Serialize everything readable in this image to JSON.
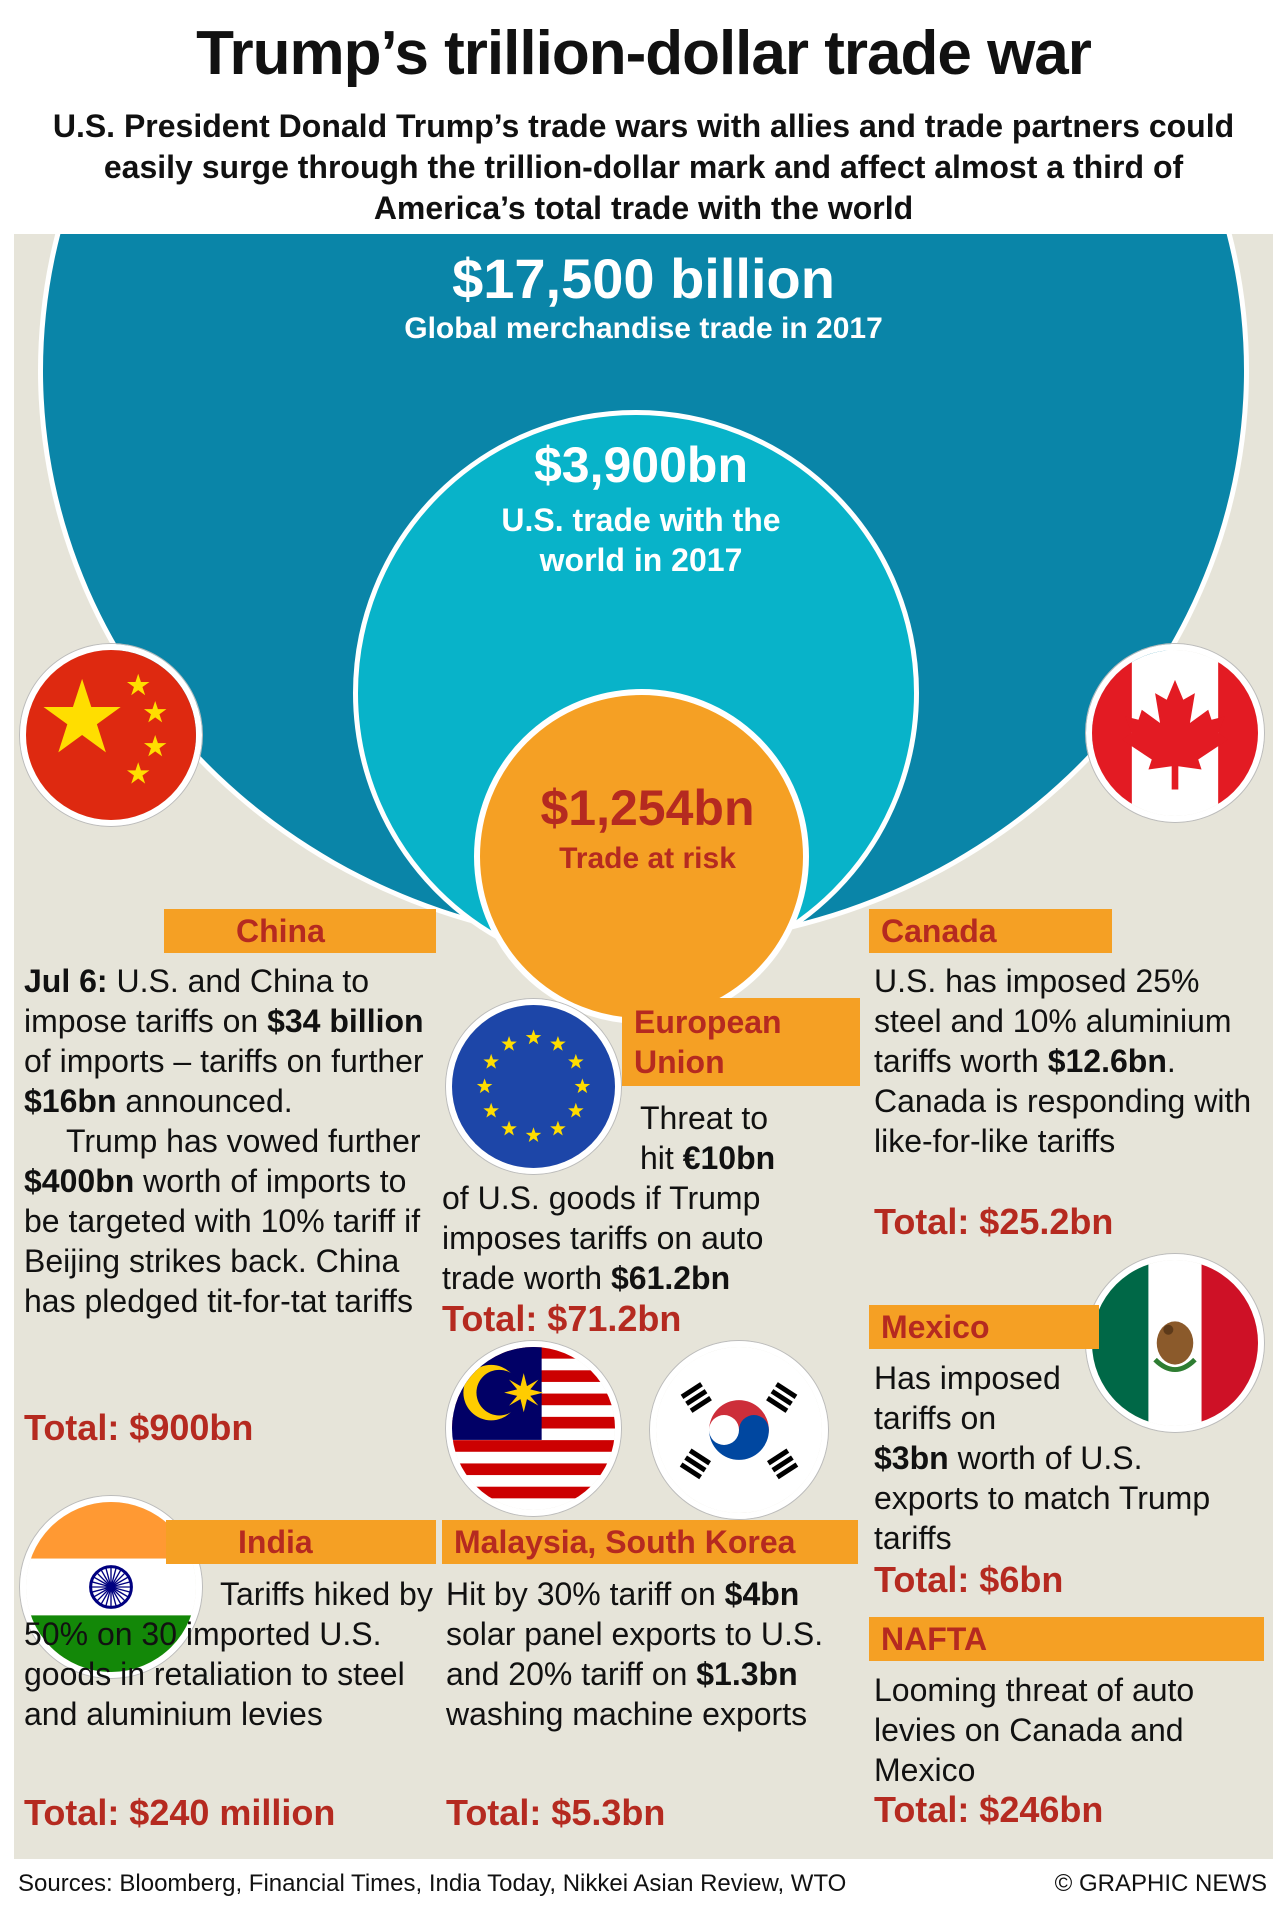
{
  "header": {
    "title": "Trump’s trillion-dollar trade war",
    "subtitle": "U.S. President Donald Trump’s trade wars with allies and trade partners could easily surge through the trillion-dollar mark and affect almost a third of America’s total trade with the world"
  },
  "circles": {
    "global": {
      "value": "$17,500 billion",
      "label": "Global merchandise trade in 2017",
      "color": "#0a85a8"
    },
    "us": {
      "value": "$3,900bn",
      "label_line1": "U.S. trade with the",
      "label_line2": "world in 2017",
      "color": "#08b3c9"
    },
    "risk": {
      "value": "$1,254bn",
      "label": "Trade at risk",
      "color": "#f5a024"
    }
  },
  "china": {
    "name": "China",
    "p1_date": "Jul 6:",
    "p1_a": " U.S. and China to impose tariffs on ",
    "p1_b": "$34 billion",
    "p1_c": " of imports – tariffs on further ",
    "p1_d": "$16bn",
    "p1_e": " announced.",
    "p2_a": "Trump has vowed further ",
    "p2_b": "$400bn",
    "p2_c": " worth of imports to be targeted with 10% tariff if Beijing strikes back. China has pledged tit-for-tat tariffs",
    "total": "Total: $900bn",
    "flag_icon": "china-flag-icon"
  },
  "eu": {
    "name_line1": "European",
    "name_line2": "Union",
    "t1": "Threat to",
    "t2_a": "hit ",
    "t2_b": "€10bn",
    "t3": "of U.S. goods if Trump imposes tariffs on auto trade worth ",
    "t3_b": "$61.2bn",
    "total": "Total: $71.2bn",
    "flag_icon": "eu-flag-icon"
  },
  "canada": {
    "name": "Canada",
    "a": "U.S. has imposed 25% steel and 10% aluminium tariffs worth ",
    "b": "$12.6bn",
    "c": ". Canada is responding with like-for-like tariffs",
    "total": "Total: $25.2bn",
    "flag_icon": "canada-flag-icon"
  },
  "mexico": {
    "name": "Mexico",
    "a": "Has imposed tariffs on",
    "b": "$3bn",
    "c": " worth of U.S. exports to match Trump tariffs",
    "total": "Total: $6bn",
    "flag_icon": "mexico-flag-icon"
  },
  "nafta": {
    "name": "NAFTA",
    "text": "Looming threat of auto levies on Canada and Mexico",
    "total": "Total: $246bn"
  },
  "india": {
    "name": "India",
    "text": "Tariffs hiked by 50% on 30 imported U.S. goods in retaliation to steel and aluminium levies",
    "total": "Total: $240 million",
    "flag_icon": "india-flag-icon"
  },
  "malaysia_korea": {
    "name": "Malaysia, South Korea",
    "a": "Hit by 30% tariff on ",
    "b": "$4bn",
    "c": " solar panel exports to U.S. and 20% tariff on ",
    "d": "$1.3bn",
    "e": " washing machine exports",
    "total": "Total: $5.3bn"
  },
  "footer": {
    "sources": "Sources: Bloomberg, Financial Times, India Today, Nikkei Asian Review, WTO",
    "credit": "© GRAPHIC NEWS"
  }
}
